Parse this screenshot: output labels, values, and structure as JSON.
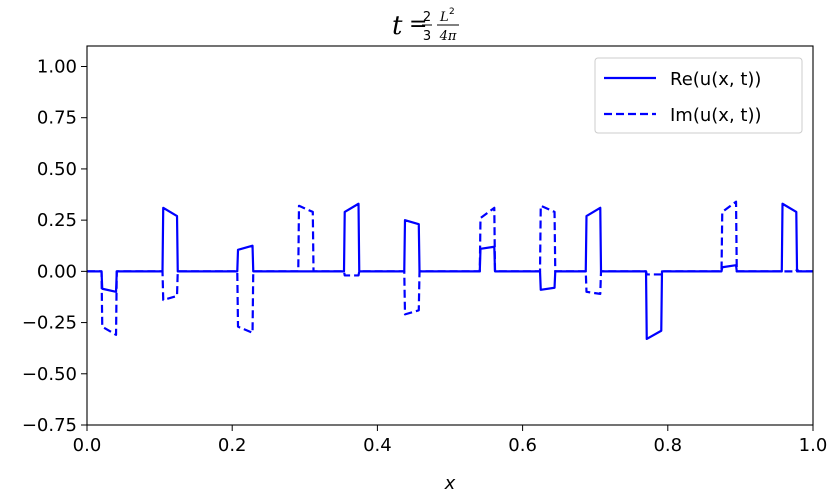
{
  "chart_data": {
    "type": "line",
    "title": {
      "var": "t",
      "equals": "=",
      "frac1_num": "2",
      "frac1_den": "3",
      "frac2_num": "L",
      "frac2_sup": "2",
      "frac2_den": "4π"
    },
    "xlabel": "x",
    "ylabel": "",
    "xlim": [
      0.0,
      1.0
    ],
    "ylim": [
      -0.75,
      1.1
    ],
    "x_ticks": [
      {
        "value": 0.0,
        "label": "0.0"
      },
      {
        "value": 0.2,
        "label": "0.2"
      },
      {
        "value": 0.4,
        "label": "0.4"
      },
      {
        "value": 0.6,
        "label": "0.6"
      },
      {
        "value": 0.8,
        "label": "0.8"
      },
      {
        "value": 1.0,
        "label": "1.0"
      }
    ],
    "y_ticks": [
      {
        "value": 1.0,
        "label": "1.00"
      },
      {
        "value": 0.75,
        "label": "0.75"
      },
      {
        "value": 0.5,
        "label": "0.50"
      },
      {
        "value": 0.25,
        "label": "0.25"
      },
      {
        "value": 0.0,
        "label": "0.00"
      },
      {
        "value": -0.25,
        "label": "−0.25"
      },
      {
        "value": -0.5,
        "label": "−0.50"
      },
      {
        "value": -0.75,
        "label": "−0.75"
      }
    ],
    "grid": false,
    "legend_position": "top-right",
    "series": [
      {
        "name": "Re(u(x, t))",
        "style": "solid",
        "color": "#0000ff",
        "points": [
          [
            0.0,
            0.0
          ],
          [
            0.02,
            0.0
          ],
          [
            0.021,
            -0.085
          ],
          [
            0.04,
            -0.1
          ],
          [
            0.041,
            0.0
          ],
          [
            0.104,
            0.0
          ],
          [
            0.105,
            0.31
          ],
          [
            0.124,
            0.27
          ],
          [
            0.125,
            0.0
          ],
          [
            0.207,
            0.0
          ],
          [
            0.208,
            0.105
          ],
          [
            0.228,
            0.125
          ],
          [
            0.229,
            0.0
          ],
          [
            0.354,
            0.0
          ],
          [
            0.355,
            0.29
          ],
          [
            0.374,
            0.33
          ],
          [
            0.375,
            0.0
          ],
          [
            0.437,
            0.0
          ],
          [
            0.438,
            0.25
          ],
          [
            0.457,
            0.23
          ],
          [
            0.458,
            0.0
          ],
          [
            0.541,
            0.0
          ],
          [
            0.542,
            0.11
          ],
          [
            0.561,
            0.12
          ],
          [
            0.562,
            0.0
          ],
          [
            0.624,
            0.0
          ],
          [
            0.625,
            -0.09
          ],
          [
            0.644,
            -0.08
          ],
          [
            0.645,
            0.0
          ],
          [
            0.687,
            0.0
          ],
          [
            0.688,
            0.27
          ],
          [
            0.707,
            0.31
          ],
          [
            0.708,
            0.0
          ],
          [
            0.77,
            0.0
          ],
          [
            0.771,
            -0.33
          ],
          [
            0.791,
            -0.29
          ],
          [
            0.792,
            0.0
          ],
          [
            0.874,
            0.0
          ],
          [
            0.875,
            0.02
          ],
          [
            0.894,
            0.03
          ],
          [
            0.895,
            0.0
          ],
          [
            0.957,
            0.0
          ],
          [
            0.958,
            0.33
          ],
          [
            0.977,
            0.29
          ],
          [
            0.978,
            0.0
          ],
          [
            1.0,
            0.0
          ]
        ]
      },
      {
        "name": "Im(u(x, t))",
        "style": "dashed",
        "color": "#0000ff",
        "points": [
          [
            0.0,
            0.0
          ],
          [
            0.02,
            0.0
          ],
          [
            0.021,
            -0.27
          ],
          [
            0.04,
            -0.31
          ],
          [
            0.041,
            0.0
          ],
          [
            0.104,
            0.0
          ],
          [
            0.105,
            -0.14
          ],
          [
            0.124,
            -0.12
          ],
          [
            0.125,
            0.0
          ],
          [
            0.207,
            0.0
          ],
          [
            0.208,
            -0.27
          ],
          [
            0.228,
            -0.3
          ],
          [
            0.229,
            0.0
          ],
          [
            0.291,
            0.0
          ],
          [
            0.292,
            0.32
          ],
          [
            0.311,
            0.29
          ],
          [
            0.312,
            0.0
          ],
          [
            0.354,
            0.0
          ],
          [
            0.355,
            -0.02
          ],
          [
            0.374,
            -0.02
          ],
          [
            0.375,
            0.0
          ],
          [
            0.437,
            0.0
          ],
          [
            0.438,
            -0.21
          ],
          [
            0.457,
            -0.19
          ],
          [
            0.458,
            0.0
          ],
          [
            0.541,
            0.0
          ],
          [
            0.542,
            0.26
          ],
          [
            0.561,
            0.31
          ],
          [
            0.562,
            0.0
          ],
          [
            0.624,
            0.0
          ],
          [
            0.625,
            0.32
          ],
          [
            0.644,
            0.29
          ],
          [
            0.645,
            0.0
          ],
          [
            0.687,
            0.0
          ],
          [
            0.688,
            -0.1
          ],
          [
            0.707,
            -0.11
          ],
          [
            0.708,
            0.0
          ],
          [
            0.77,
            0.0
          ],
          [
            0.771,
            -0.015
          ],
          [
            0.791,
            -0.015
          ],
          [
            0.792,
            0.0
          ],
          [
            0.874,
            0.0
          ],
          [
            0.875,
            0.29
          ],
          [
            0.894,
            0.34
          ],
          [
            0.895,
            0.0
          ],
          [
            0.957,
            0.0
          ],
          [
            0.958,
            0.0
          ],
          [
            0.977,
            0.0
          ],
          [
            0.978,
            0.01
          ],
          [
            0.98,
            0.0
          ],
          [
            1.0,
            0.0
          ]
        ]
      }
    ]
  }
}
